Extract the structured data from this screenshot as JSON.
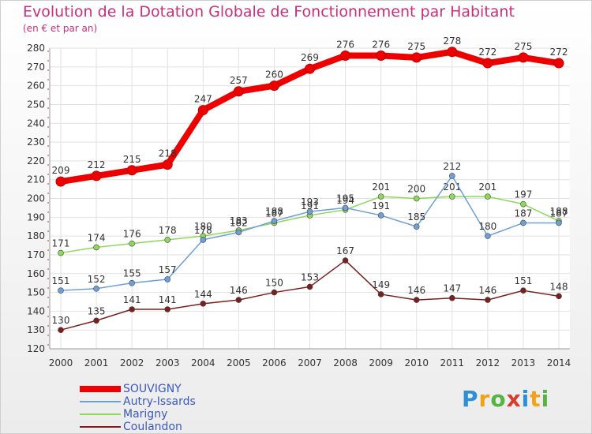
{
  "chart_data": {
    "type": "line",
    "title": "Evolution de la Dotation Globale de Fonctionnement par Habitant",
    "subtitle": "(en € et par an)",
    "x": [
      "2000",
      "2001",
      "2002",
      "2003",
      "2004",
      "2005",
      "2006",
      "2007",
      "2008",
      "2009",
      "2010",
      "2011",
      "2012",
      "2013",
      "2014"
    ],
    "ylim": [
      120,
      280
    ],
    "yticks": [
      120,
      130,
      140,
      150,
      160,
      170,
      180,
      190,
      200,
      210,
      220,
      230,
      240,
      250,
      260,
      270,
      280
    ],
    "grid": true,
    "legend": "bottom-left",
    "series": [
      {
        "name": "SOUVIGNY",
        "color": "#ee0000",
        "values": [
          209,
          212,
          215,
          218,
          247,
          257,
          260,
          269,
          276,
          276,
          275,
          278,
          272,
          275,
          272
        ]
      },
      {
        "name": "Autry-Issards",
        "color": "#6e9fd6",
        "values": [
          151,
          152,
          155,
          157,
          178,
          182,
          188,
          193,
          195,
          191,
          185,
          212,
          180,
          187,
          187
        ]
      },
      {
        "name": "Marigny",
        "color": "#8ed85a",
        "values": [
          171,
          174,
          176,
          178,
          180,
          183,
          187,
          191,
          194,
          201,
          200,
          201,
          201,
          197,
          188
        ]
      },
      {
        "name": "Coulandon",
        "color": "#7a1f1f",
        "values": [
          130,
          135,
          141,
          141,
          144,
          146,
          150,
          153,
          167,
          149,
          146,
          147,
          146,
          151,
          148
        ]
      }
    ]
  },
  "brand": {
    "letters": [
      "P",
      "r",
      "o",
      "x",
      "i",
      "t",
      "i"
    ],
    "colors": [
      "#2f8fd6",
      "#f2a21a",
      "#57b442",
      "#d93c2c",
      "#2f8fd6",
      "#f2a21a",
      "#57b442"
    ]
  }
}
